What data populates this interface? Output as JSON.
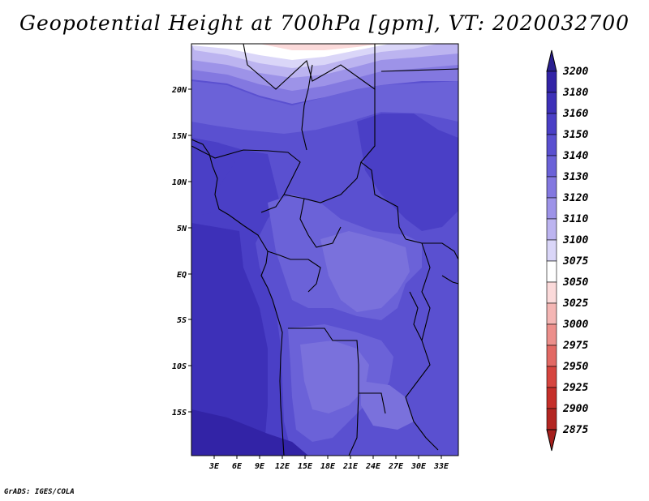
{
  "title": "Geopotential Height at 700hPa [gpm], VT: 2020032700",
  "credit": "GrADS: IGES/COLA",
  "map": {
    "lat_labels": [
      "20N",
      "15N",
      "10N",
      "5N",
      "EQ",
      "5S",
      "10S",
      "15S"
    ],
    "lon_labels": [
      "3E",
      "6E",
      "9E",
      "12E",
      "15E",
      "18E",
      "21E",
      "24E",
      "27E",
      "30E",
      "33E"
    ]
  },
  "colorbar": {
    "levels": [
      "3200",
      "3180",
      "3160",
      "3150",
      "3140",
      "3130",
      "3120",
      "3110",
      "3100",
      "3075",
      "3050",
      "3025",
      "3000",
      "2975",
      "2950",
      "2925",
      "2900",
      "2875"
    ],
    "colors": [
      "#2a1f8f",
      "#3223a6",
      "#3d30b8",
      "#4a3fc6",
      "#5a50d0",
      "#6b62d8",
      "#8378e0",
      "#9d93e8",
      "#bcb4f0",
      "#dad6f8",
      "#ffffff",
      "#fbdada",
      "#f4b6b4",
      "#ec8f8b",
      "#e26964",
      "#d6453f",
      "#c52f2a",
      "#b32622",
      "#a51f1c"
    ]
  }
}
